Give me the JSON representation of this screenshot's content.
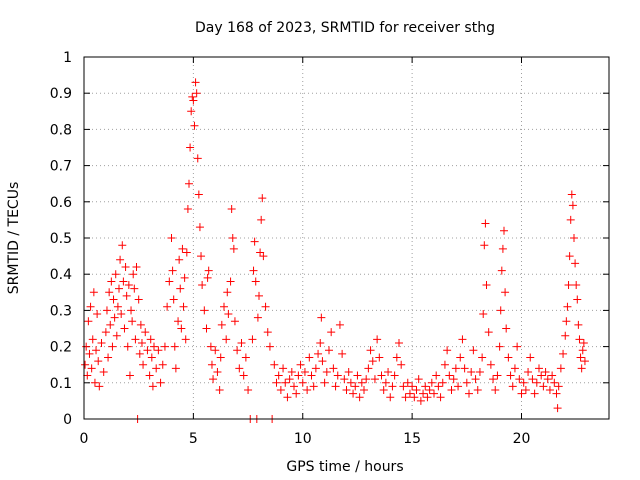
{
  "chart_data": {
    "type": "scatter",
    "title": "Day 168 of 2023, SRMTID for receiver sthg",
    "xlabel": "GPS time / hours",
    "ylabel": "SRMTID / TECUs",
    "xlim": [
      0,
      24
    ],
    "ylim": [
      0,
      1
    ],
    "xticks": [
      0,
      5,
      10,
      15,
      20
    ],
    "xtick_labels": [
      "0",
      "5",
      "10",
      "15",
      "20"
    ],
    "yticks": [
      0,
      0.1,
      0.2,
      0.3,
      0.4,
      0.5,
      0.6,
      0.7,
      0.8,
      0.9,
      1
    ],
    "ytick_labels": [
      "0",
      "0.1",
      "0.2",
      "0.3",
      "0.4",
      "0.5",
      "0.6",
      "0.7",
      "0.8",
      "0.9",
      "1"
    ],
    "grid": true,
    "marker": "+",
    "color": "#ff0000",
    "x_data_max_hours": 22.9,
    "series": [
      {
        "name": "SRMTID",
        "points": [
          [
            0.05,
            0.15
          ],
          [
            0.1,
            0.2
          ],
          [
            0.15,
            0.12
          ],
          [
            0.2,
            0.27
          ],
          [
            0.25,
            0.18
          ],
          [
            0.3,
            0.31
          ],
          [
            0.35,
            0.14
          ],
          [
            0.4,
            0.22
          ],
          [
            0.45,
            0.35
          ],
          [
            0.5,
            0.1
          ],
          [
            0.55,
            0.19
          ],
          [
            0.6,
            0.29
          ],
          [
            0.65,
            0.16
          ],
          [
            0.7,
            0.09
          ],
          [
            0.8,
            0.21
          ],
          [
            0.9,
            0.13
          ],
          [
            1.0,
            0.24
          ],
          [
            1.05,
            0.3
          ],
          [
            1.1,
            0.17
          ],
          [
            1.15,
            0.35
          ],
          [
            1.2,
            0.26
          ],
          [
            1.25,
            0.38
          ],
          [
            1.3,
            0.2
          ],
          [
            1.35,
            0.33
          ],
          [
            1.4,
            0.28
          ],
          [
            1.45,
            0.4
          ],
          [
            1.5,
            0.23
          ],
          [
            1.55,
            0.31
          ],
          [
            1.6,
            0.36
          ],
          [
            1.65,
            0.44
          ],
          [
            1.7,
            0.29
          ],
          [
            1.75,
            0.48
          ],
          [
            1.8,
            0.38
          ],
          [
            1.85,
            0.25
          ],
          [
            1.9,
            0.42
          ],
          [
            1.95,
            0.34
          ],
          [
            2.0,
            0.2
          ],
          [
            2.05,
            0.37
          ],
          [
            2.1,
            0.12
          ],
          [
            2.15,
            0.3
          ],
          [
            2.2,
            0.27
          ],
          [
            2.25,
            0.4
          ],
          [
            2.3,
            0.36
          ],
          [
            2.35,
            0.22
          ],
          [
            2.4,
            0.42
          ],
          [
            2.45,
            0.0
          ],
          [
            2.5,
            0.33
          ],
          [
            2.55,
            0.18
          ],
          [
            2.6,
            0.26
          ],
          [
            2.65,
            0.21
          ],
          [
            2.7,
            0.15
          ],
          [
            2.8,
            0.24
          ],
          [
            2.9,
            0.19
          ],
          [
            3.0,
            0.12
          ],
          [
            3.05,
            0.22
          ],
          [
            3.1,
            0.17
          ],
          [
            3.15,
            0.09
          ],
          [
            3.2,
            0.2
          ],
          [
            3.3,
            0.14
          ],
          [
            3.4,
            0.19
          ],
          [
            3.5,
            0.1
          ],
          [
            3.6,
            0.15
          ],
          [
            3.7,
            0.2
          ],
          [
            3.8,
            0.31
          ],
          [
            3.9,
            0.38
          ],
          [
            4.0,
            0.5
          ],
          [
            4.05,
            0.41
          ],
          [
            4.1,
            0.33
          ],
          [
            4.15,
            0.2
          ],
          [
            4.2,
            0.14
          ],
          [
            4.3,
            0.27
          ],
          [
            4.35,
            0.44
          ],
          [
            4.4,
            0.36
          ],
          [
            4.45,
            0.25
          ],
          [
            4.5,
            0.47
          ],
          [
            4.55,
            0.31
          ],
          [
            4.6,
            0.39
          ],
          [
            4.65,
            0.22
          ],
          [
            4.7,
            0.46
          ],
          [
            4.75,
            0.58
          ],
          [
            4.8,
            0.65
          ],
          [
            4.85,
            0.75
          ],
          [
            4.9,
            0.85
          ],
          [
            4.95,
            0.89
          ],
          [
            5.0,
            0.88
          ],
          [
            5.05,
            0.81
          ],
          [
            5.1,
            0.93
          ],
          [
            5.15,
            0.9
          ],
          [
            5.2,
            0.72
          ],
          [
            5.25,
            0.62
          ],
          [
            5.3,
            0.53
          ],
          [
            5.35,
            0.45
          ],
          [
            5.4,
            0.37
          ],
          [
            5.5,
            0.3
          ],
          [
            5.6,
            0.25
          ],
          [
            5.65,
            0.39
          ],
          [
            5.7,
            0.41
          ],
          [
            5.8,
            0.2
          ],
          [
            5.85,
            0.15
          ],
          [
            5.9,
            0.11
          ],
          [
            6.0,
            0.19
          ],
          [
            6.1,
            0.13
          ],
          [
            6.2,
            0.08
          ],
          [
            6.25,
            0.17
          ],
          [
            6.3,
            0.26
          ],
          [
            6.4,
            0.31
          ],
          [
            6.5,
            0.22
          ],
          [
            6.55,
            0.35
          ],
          [
            6.6,
            0.29
          ],
          [
            6.7,
            0.38
          ],
          [
            6.75,
            0.58
          ],
          [
            6.8,
            0.5
          ],
          [
            6.85,
            0.47
          ],
          [
            6.9,
            0.27
          ],
          [
            7.0,
            0.19
          ],
          [
            7.1,
            0.14
          ],
          [
            7.2,
            0.21
          ],
          [
            7.3,
            0.12
          ],
          [
            7.4,
            0.17
          ],
          [
            7.5,
            0.08
          ],
          [
            7.6,
            0.0
          ],
          [
            7.7,
            0.22
          ],
          [
            7.75,
            0.41
          ],
          [
            7.8,
            0.49
          ],
          [
            7.85,
            0.38
          ],
          [
            7.9,
            0.0
          ],
          [
            7.95,
            0.28
          ],
          [
            8.0,
            0.34
          ],
          [
            8.05,
            0.46
          ],
          [
            8.1,
            0.55
          ],
          [
            8.15,
            0.61
          ],
          [
            8.2,
            0.45
          ],
          [
            8.3,
            0.31
          ],
          [
            8.4,
            0.24
          ],
          [
            8.5,
            0.2
          ],
          [
            8.6,
            0.0
          ],
          [
            8.7,
            0.15
          ],
          [
            8.8,
            0.1
          ],
          [
            8.9,
            0.12
          ],
          [
            9.0,
            0.08
          ],
          [
            9.1,
            0.14
          ],
          [
            9.2,
            0.1
          ],
          [
            9.3,
            0.06
          ],
          [
            9.4,
            0.11
          ],
          [
            9.5,
            0.13
          ],
          [
            9.6,
            0.09
          ],
          [
            9.7,
            0.07
          ],
          [
            9.8,
            0.12
          ],
          [
            9.9,
            0.15
          ],
          [
            10.0,
            0.1
          ],
          [
            10.1,
            0.13
          ],
          [
            10.2,
            0.08
          ],
          [
            10.3,
            0.17
          ],
          [
            10.4,
            0.12
          ],
          [
            10.5,
            0.09
          ],
          [
            10.6,
            0.14
          ],
          [
            10.7,
            0.18
          ],
          [
            10.8,
            0.21
          ],
          [
            10.85,
            0.28
          ],
          [
            10.9,
            0.16
          ],
          [
            11.0,
            0.1
          ],
          [
            11.1,
            0.13
          ],
          [
            11.2,
            0.19
          ],
          [
            11.3,
            0.24
          ],
          [
            11.4,
            0.14
          ],
          [
            11.5,
            0.09
          ],
          [
            11.6,
            0.12
          ],
          [
            11.7,
            0.26
          ],
          [
            11.8,
            0.18
          ],
          [
            11.9,
            0.11
          ],
          [
            12.0,
            0.08
          ],
          [
            12.1,
            0.13
          ],
          [
            12.2,
            0.1
          ],
          [
            12.3,
            0.07
          ],
          [
            12.4,
            0.09
          ],
          [
            12.5,
            0.12
          ],
          [
            12.6,
            0.06
          ],
          [
            12.7,
            0.1
          ],
          [
            12.8,
            0.08
          ],
          [
            12.9,
            0.11
          ],
          [
            13.0,
            0.14
          ],
          [
            13.1,
            0.19
          ],
          [
            13.2,
            0.16
          ],
          [
            13.3,
            0.11
          ],
          [
            13.4,
            0.22
          ],
          [
            13.5,
            0.17
          ],
          [
            13.6,
            0.12
          ],
          [
            13.7,
            0.08
          ],
          [
            13.8,
            0.1
          ],
          [
            13.9,
            0.13
          ],
          [
            14.0,
            0.06
          ],
          [
            14.1,
            0.09
          ],
          [
            14.2,
            0.12
          ],
          [
            14.3,
            0.17
          ],
          [
            14.4,
            0.21
          ],
          [
            14.5,
            0.15
          ],
          [
            14.6,
            0.09
          ],
          [
            14.7,
            0.06
          ],
          [
            14.8,
            0.1
          ],
          [
            14.9,
            0.07
          ],
          [
            15.0,
            0.09
          ],
          [
            15.1,
            0.06
          ],
          [
            15.2,
            0.08
          ],
          [
            15.3,
            0.11
          ],
          [
            15.4,
            0.05
          ],
          [
            15.5,
            0.07
          ],
          [
            15.6,
            0.09
          ],
          [
            15.7,
            0.06
          ],
          [
            15.8,
            0.08
          ],
          [
            15.9,
            0.1
          ],
          [
            16.0,
            0.07
          ],
          [
            16.1,
            0.12
          ],
          [
            16.2,
            0.09
          ],
          [
            16.3,
            0.06
          ],
          [
            16.4,
            0.1
          ],
          [
            16.5,
            0.15
          ],
          [
            16.6,
            0.19
          ],
          [
            16.7,
            0.12
          ],
          [
            16.8,
            0.08
          ],
          [
            16.9,
            0.11
          ],
          [
            17.0,
            0.14
          ],
          [
            17.1,
            0.09
          ],
          [
            17.2,
            0.17
          ],
          [
            17.3,
            0.22
          ],
          [
            17.4,
            0.14
          ],
          [
            17.5,
            0.1
          ],
          [
            17.6,
            0.07
          ],
          [
            17.7,
            0.13
          ],
          [
            17.8,
            0.19
          ],
          [
            17.9,
            0.11
          ],
          [
            18.0,
            0.08
          ],
          [
            18.1,
            0.13
          ],
          [
            18.2,
            0.17
          ],
          [
            18.25,
            0.29
          ],
          [
            18.3,
            0.48
          ],
          [
            18.35,
            0.54
          ],
          [
            18.4,
            0.37
          ],
          [
            18.5,
            0.24
          ],
          [
            18.6,
            0.15
          ],
          [
            18.7,
            0.11
          ],
          [
            18.8,
            0.08
          ],
          [
            18.9,
            0.12
          ],
          [
            19.0,
            0.2
          ],
          [
            19.05,
            0.3
          ],
          [
            19.1,
            0.41
          ],
          [
            19.15,
            0.47
          ],
          [
            19.2,
            0.52
          ],
          [
            19.25,
            0.35
          ],
          [
            19.3,
            0.25
          ],
          [
            19.4,
            0.17
          ],
          [
            19.5,
            0.12
          ],
          [
            19.6,
            0.09
          ],
          [
            19.7,
            0.14
          ],
          [
            19.8,
            0.2
          ],
          [
            19.9,
            0.11
          ],
          [
            20.0,
            0.07
          ],
          [
            20.1,
            0.1
          ],
          [
            20.2,
            0.08
          ],
          [
            20.3,
            0.13
          ],
          [
            20.4,
            0.17
          ],
          [
            20.5,
            0.11
          ],
          [
            20.6,
            0.07
          ],
          [
            20.7,
            0.1
          ],
          [
            20.8,
            0.14
          ],
          [
            20.9,
            0.12
          ],
          [
            21.0,
            0.09
          ],
          [
            21.1,
            0.13
          ],
          [
            21.2,
            0.11
          ],
          [
            21.3,
            0.08
          ],
          [
            21.4,
            0.12
          ],
          [
            21.5,
            0.1
          ],
          [
            21.6,
            0.07
          ],
          [
            21.65,
            0.03
          ],
          [
            21.7,
            0.09
          ],
          [
            21.8,
            0.14
          ],
          [
            21.9,
            0.18
          ],
          [
            22.0,
            0.23
          ],
          [
            22.05,
            0.27
          ],
          [
            22.1,
            0.31
          ],
          [
            22.15,
            0.37
          ],
          [
            22.2,
            0.45
          ],
          [
            22.25,
            0.55
          ],
          [
            22.3,
            0.62
          ],
          [
            22.35,
            0.59
          ],
          [
            22.4,
            0.5
          ],
          [
            22.45,
            0.43
          ],
          [
            22.5,
            0.37
          ],
          [
            22.55,
            0.33
          ],
          [
            22.6,
            0.26
          ],
          [
            22.65,
            0.22
          ],
          [
            22.7,
            0.17
          ],
          [
            22.75,
            0.14
          ],
          [
            22.8,
            0.19
          ],
          [
            22.85,
            0.21
          ],
          [
            22.9,
            0.16
          ]
        ]
      }
    ]
  }
}
